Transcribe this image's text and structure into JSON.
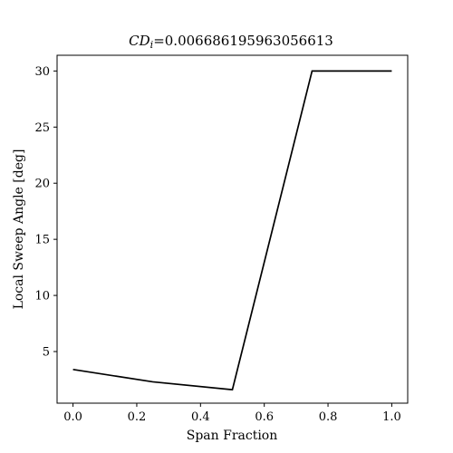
{
  "chart_data": {
    "type": "line",
    "title_prefix": "CD",
    "title_subscript": "i",
    "title_value": "=0.006686195963056613",
    "xlabel": "Span Fraction",
    "ylabel": "Local Sweep Angle [deg]",
    "xlim": [
      -0.05,
      1.05
    ],
    "ylim": [
      0.4,
      31.4
    ],
    "xticks": [
      0.0,
      0.2,
      0.4,
      0.6,
      0.8,
      1.0
    ],
    "xtick_labels": [
      "0.0",
      "0.2",
      "0.4",
      "0.6",
      "0.8",
      "1.0"
    ],
    "yticks": [
      5,
      10,
      15,
      20,
      25,
      30
    ],
    "ytick_labels": [
      "5",
      "10",
      "15",
      "20",
      "25",
      "30"
    ],
    "grid": false,
    "series": [
      {
        "color": "#000000",
        "x": [
          0.0,
          0.25,
          0.5,
          0.75,
          1.0
        ],
        "y": [
          3.4,
          2.3,
          1.6,
          30.0,
          30.0
        ]
      }
    ]
  }
}
